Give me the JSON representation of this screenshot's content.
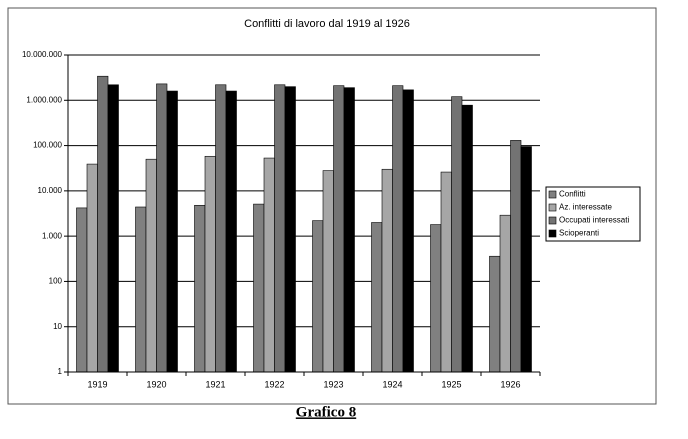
{
  "chart_data": {
    "type": "bar",
    "title": "Conflitti di lavoro dal 1919 al 1926",
    "categories": [
      "1919",
      "1920",
      "1921",
      "1922",
      "1923",
      "1924",
      "1925",
      "1926"
    ],
    "series": [
      {
        "name": "Conflitti",
        "color": "#808080",
        "values": [
          4200,
          4400,
          4800,
          5100,
          2200,
          2000,
          1800,
          360
        ]
      },
      {
        "name": "Az. interessate",
        "color": "#a6a6a6",
        "values": [
          39000,
          50000,
          58000,
          53000,
          28000,
          30000,
          26000,
          2900
        ]
      },
      {
        "name": "Occupati interessati",
        "color": "#737373",
        "values": [
          3400000,
          2300000,
          2200000,
          2200000,
          2100000,
          2100000,
          1200000,
          130000
        ]
      },
      {
        "name": "Scioperanti",
        "color": "#000000",
        "values": [
          2200000,
          1600000,
          1600000,
          2000000,
          1900000,
          1700000,
          780000,
          95000
        ]
      }
    ],
    "log_scale": true,
    "ylim": [
      1,
      10000000
    ],
    "yticks": [
      1,
      10,
      100,
      {
        "value": 1000,
        "label": "1.000"
      },
      {
        "value": 10000,
        "label": "10.000"
      },
      {
        "value": 100000,
        "label": "100.000"
      },
      {
        "value": 1000000,
        "label": "1.000.000"
      },
      {
        "value": 10000000,
        "label": "10.000.000"
      }
    ],
    "grid": true,
    "legend": "right"
  },
  "caption": "Grafico 8"
}
